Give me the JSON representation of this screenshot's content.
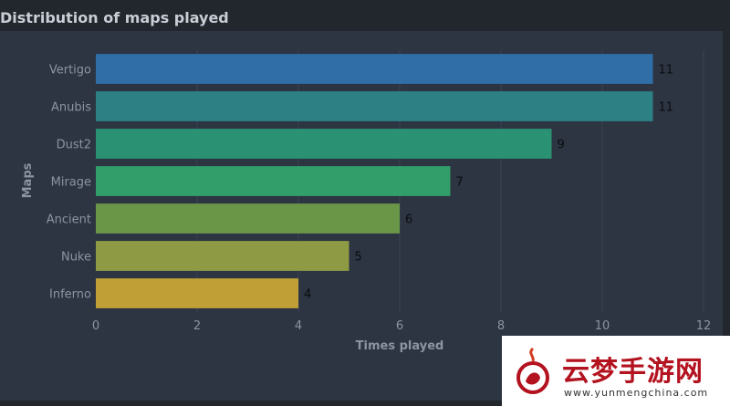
{
  "chart_data": {
    "type": "bar",
    "orientation": "horizontal",
    "title": "Distribution of maps played",
    "xlabel": "Times played",
    "ylabel": "Maps",
    "categories": [
      "Vertigo",
      "Anubis",
      "Dust2",
      "Mirage",
      "Ancient",
      "Nuke",
      "Inferno"
    ],
    "values": [
      11,
      11,
      9,
      7,
      6,
      5,
      4
    ],
    "colors": [
      "#2f6ea6",
      "#2d8185",
      "#2a9273",
      "#329e69",
      "#6a9648",
      "#8f9a44",
      "#c09f37"
    ],
    "xlim": [
      0,
      12
    ],
    "xticks": [
      0,
      2,
      4,
      6,
      8,
      10,
      12
    ],
    "grid": true
  },
  "watermark": {
    "text": "云梦手游网",
    "url": "www.yunmengchina.com"
  }
}
